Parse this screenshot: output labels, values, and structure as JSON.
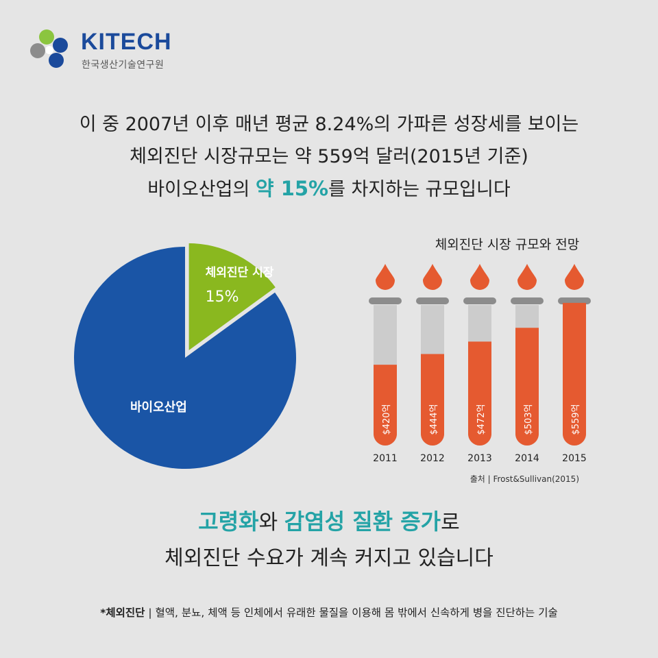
{
  "logo": {
    "name": "KITECH",
    "subtitle": "한국생산기술연구원",
    "colors": {
      "green": "#8bc53f",
      "blue": "#1b4a9b",
      "gray": "#8c8c8c"
    }
  },
  "headline": {
    "line1": "이 중 2007년 이후 매년 평균 8.24%의 가파른 성장세를 보이는",
    "line2": "체외진단 시장규모는 약 559억 달러(2015년 기준)",
    "line3_pre": "바이오산업의",
    "line3_highlight": "약 15%",
    "line3_post": "를 차지하는 규모입니다"
  },
  "chart_data": [
    {
      "type": "pie",
      "slices": [
        {
          "label": "체외진단 시장",
          "value": 15,
          "value_label": "15%",
          "color": "#8ab81f"
        },
        {
          "label": "바이오산업",
          "value": 85,
          "value_label": "",
          "color": "#1a55a6"
        }
      ]
    },
    {
      "type": "bar",
      "title": "체외진단 시장 규모와 전망",
      "categories": [
        "2011",
        "2012",
        "2013",
        "2014",
        "2015"
      ],
      "values": [
        420,
        444,
        472,
        503,
        559
      ],
      "value_labels": [
        "$420억",
        "$444억",
        "$472억",
        "$503억",
        "$559억"
      ],
      "fill_color": "#e55a30",
      "track_color": "#cccccc",
      "source": "출처 | Frost&Sullivan(2015)"
    }
  ],
  "bottom": {
    "teal1": "고령화",
    "text1": "와 ",
    "teal2": "감염성 질환 증가",
    "text2": "로",
    "line2": "체외진단 수요가 계속 커지고 있습니다"
  },
  "footnote": {
    "term": "*체외진단",
    "definition": " | 혈액, 분뇨, 체액 등 인체에서 유래한 물질을 이용해 몸 밖에서 신속하게 병을 진단하는 기술"
  }
}
